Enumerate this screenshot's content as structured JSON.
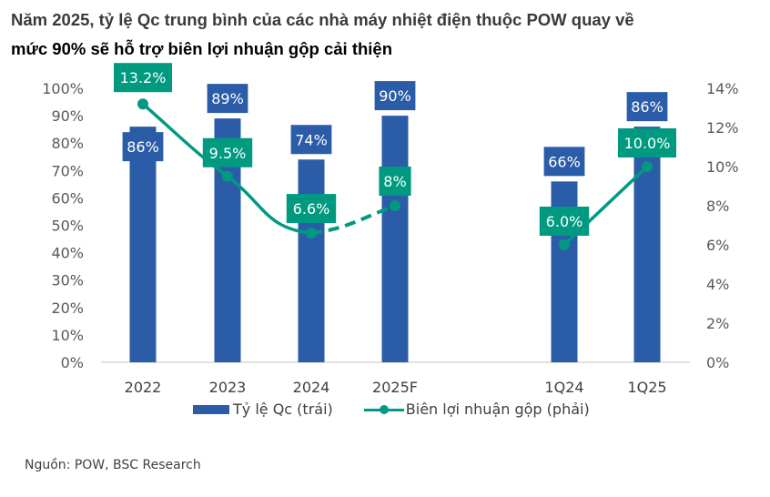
{
  "header": {
    "title_line1": "Năm 2025, tỷ lệ Qc trung bình của các nhà máy nhiệt điện thuộc POW quay về",
    "title_line2": "mức 90% sẽ hỗ trợ biên lợi nhuận gộp cải thiện"
  },
  "footer": {
    "source": "Nguồn: POW, BSC Research"
  },
  "colors": {
    "bar": "#2b5ca8",
    "line": "#009a80",
    "axis": "#d9d9d9"
  },
  "chart_data": {
    "type": "bar+line",
    "title": "Năm 2025, tỷ lệ Qc trung bình của các nhà máy nhiệt điện thuộc POW quay về mức 90% sẽ hỗ trợ biên lợi nhuận gộp cải thiện",
    "categories": [
      "2022",
      "2023",
      "2024",
      "2025F",
      "1Q24",
      "1Q25"
    ],
    "series": [
      {
        "name": "Tỷ lệ Qc (trái)",
        "type": "bar",
        "axis": "left",
        "values": [
          86,
          89,
          74,
          90,
          66,
          86
        ],
        "labels": [
          "86%",
          "89%",
          "74%",
          "90%",
          "66%",
          "86%"
        ]
      },
      {
        "name": "Biên lợi nhuận gộp (phải)",
        "type": "line",
        "axis": "right",
        "values": [
          13.2,
          9.5,
          6.6,
          8.0,
          6.0,
          10.0
        ],
        "labels": [
          "13.2%",
          "9.5%",
          "6.6%",
          "8%",
          "6.0%",
          "10.0%"
        ],
        "segments": [
          {
            "from": "2022",
            "to": "2024",
            "style": "solid"
          },
          {
            "from": "2024",
            "to": "2025F",
            "style": "dashed"
          },
          {
            "from": "1Q24",
            "to": "1Q25",
            "style": "solid"
          }
        ]
      }
    ],
    "left_axis": {
      "range": [
        0,
        100
      ],
      "ticks": [
        "0%",
        "10%",
        "20%",
        "30%",
        "40%",
        "50%",
        "60%",
        "70%",
        "80%",
        "90%",
        "100%"
      ]
    },
    "right_axis": {
      "range": [
        0,
        14
      ],
      "ticks": [
        "0%",
        "2%",
        "4%",
        "6%",
        "8%",
        "10%",
        "12%",
        "14%"
      ]
    },
    "legend": {
      "position": "bottom",
      "entries": [
        "Tỷ lệ Qc (trái)",
        "Biên lợi nhuận gộp (phải)"
      ]
    },
    "grid": false
  }
}
